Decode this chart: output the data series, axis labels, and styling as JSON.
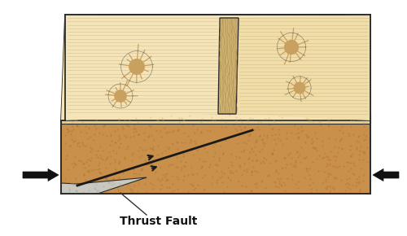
{
  "fig_width": 5.0,
  "fig_height": 2.9,
  "dpi": 100,
  "bg_color": "#ffffff",
  "surface_top_color": "#f5e4b8",
  "subsurface_color": "#c8904a",
  "scarp_color": "#d4b878",
  "fault_line_color": "#1a1a1a",
  "arrow_color": "#111111",
  "label_text": "Thrust Fault",
  "label_fontsize": 10,
  "outline_color": "#2a2a2a",
  "dot_color": "#b07030",
  "line_color": "#b8a878",
  "crater_color": "#c8a060",
  "layer_color": "#e8d090",
  "wedge_color": "#c8c8c0",
  "elev_right_color": "#f0dda8"
}
